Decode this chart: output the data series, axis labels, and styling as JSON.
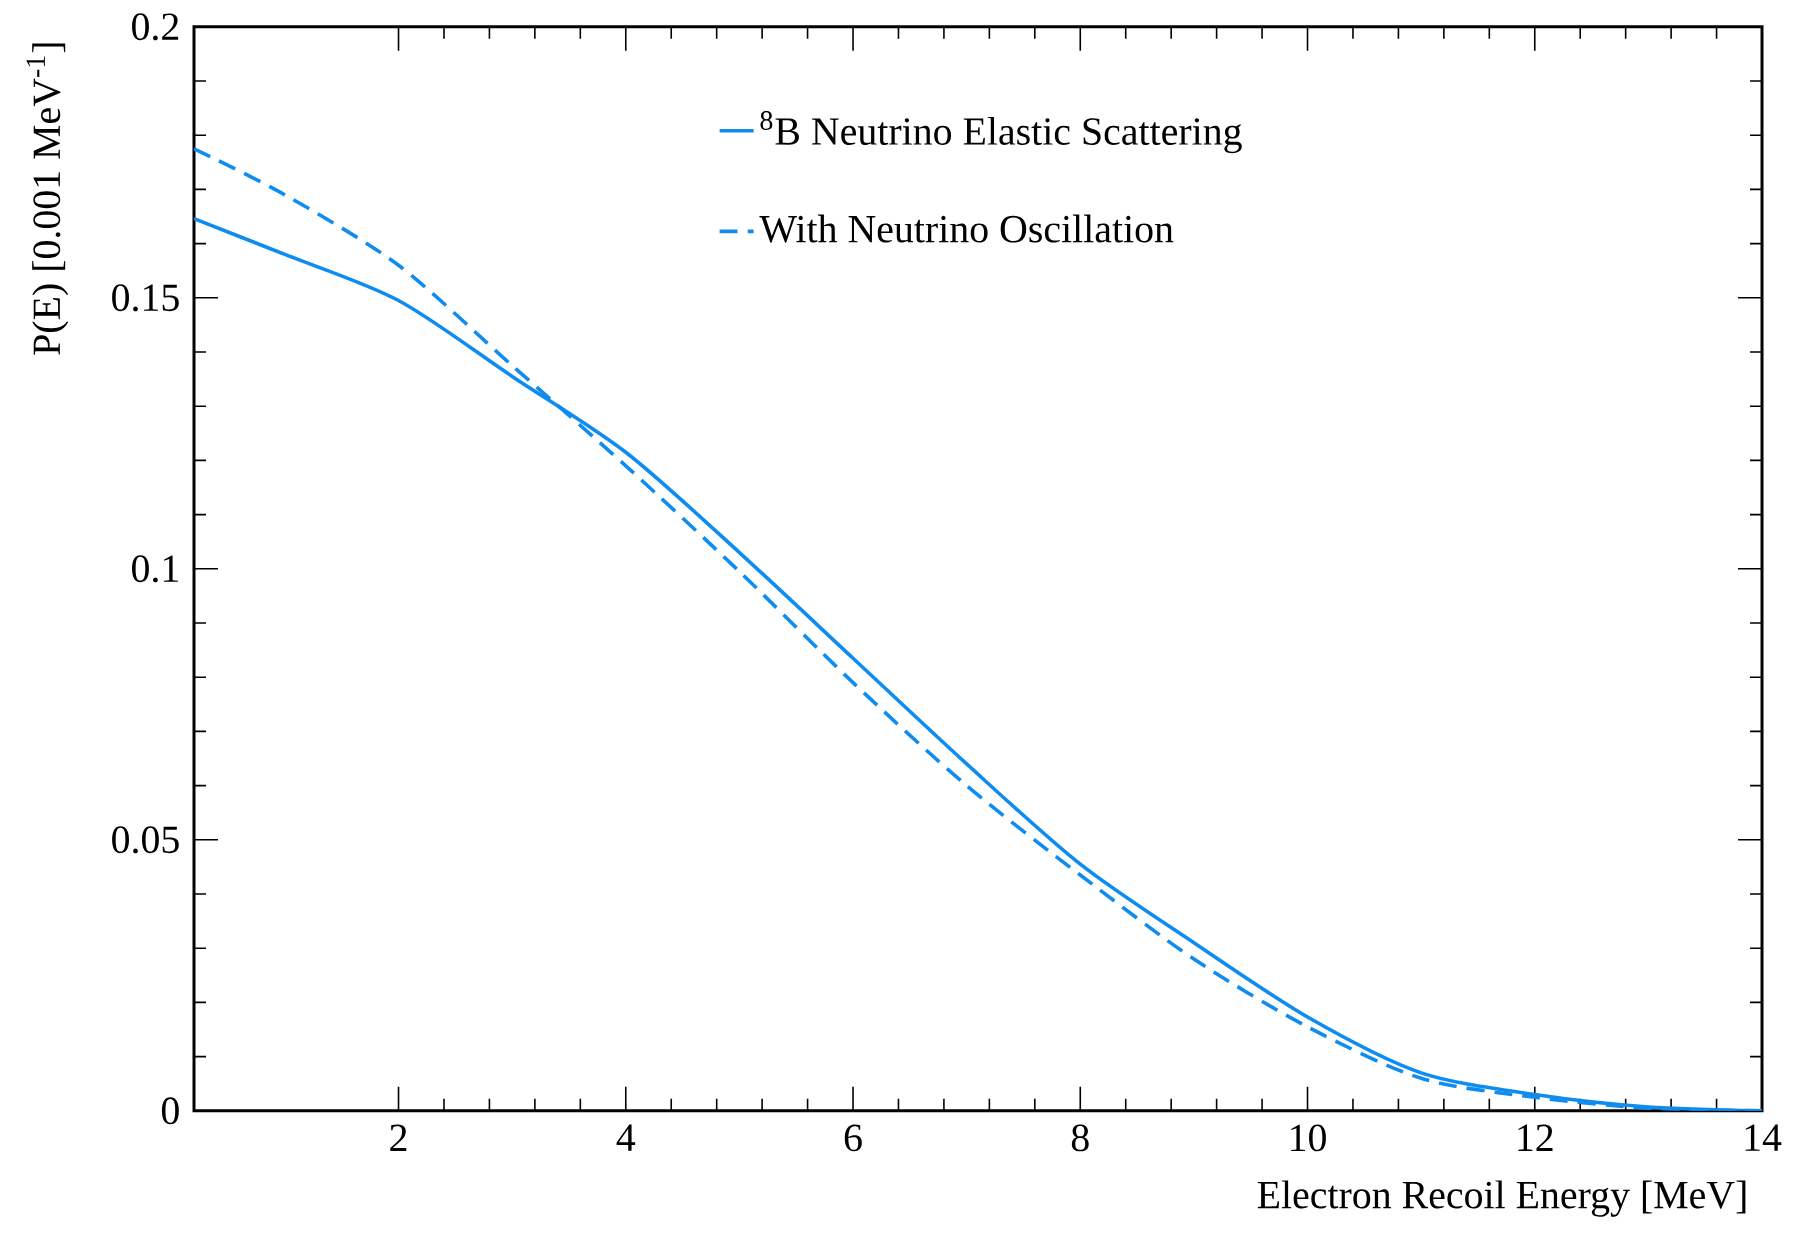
{
  "chart_data": {
    "type": "line",
    "xlabel": "Electron Recoil Energy [MeV]",
    "ylabel": "P(E) [0.001 MeV$^{-1}$]",
    "xlim": [
      0.2,
      14
    ],
    "ylim": [
      0,
      0.2
    ],
    "xticks": [
      2,
      4,
      6,
      8,
      10,
      12,
      14
    ],
    "yticks": [
      0,
      0.05,
      0.1,
      0.15,
      0.2
    ],
    "grid": false,
    "legend": "top right",
    "marker": "none",
    "series": [
      {
        "name": "$^{8}$B Neutrino Elastic Scattering",
        "color": "#0f8cf0",
        "line_style": "solid",
        "x": [
          0.2,
          1,
          2,
          3,
          4,
          5,
          6,
          7,
          8,
          9,
          10,
          11,
          12,
          13,
          14
        ],
        "values": [
          0.1646,
          0.158,
          0.1495,
          0.1355,
          0.1215,
          0.103,
          0.0835,
          0.064,
          0.0455,
          0.031,
          0.0173,
          0.007,
          0.003,
          0.0007,
          0
        ]
      },
      {
        "name": "With Neutrino Oscillation",
        "color": "#0f8cf0",
        "line_style": "dashed",
        "x": [
          0.2,
          1,
          2,
          3,
          4,
          5,
          6,
          7,
          8,
          9,
          10,
          11,
          12,
          13,
          14
        ],
        "values": [
          0.1775,
          0.169,
          0.156,
          0.1375,
          0.119,
          0.0995,
          0.079,
          0.06,
          0.0435,
          0.028,
          0.0155,
          0.006,
          0.0025,
          0.0005,
          0
        ]
      }
    ]
  }
}
